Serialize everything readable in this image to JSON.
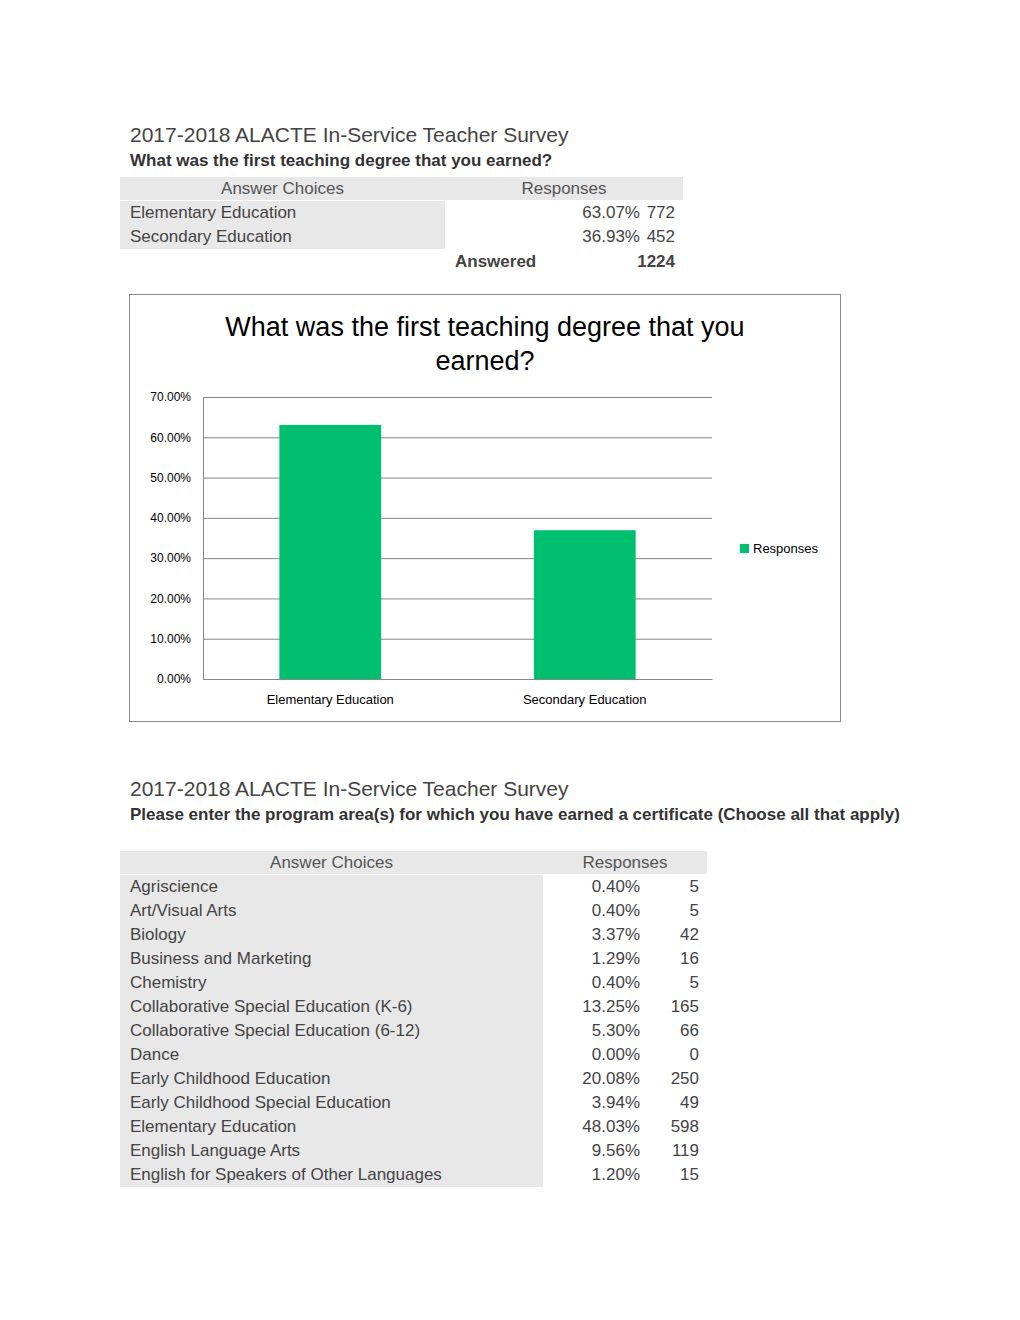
{
  "sections": [
    {
      "title": "2017-2018 ALACTE In-Service Teacher Survey",
      "question": "What was the first teaching degree that you earned?",
      "table": {
        "columns": [
          "Answer Choices",
          "Responses"
        ],
        "rows": [
          [
            "Elementary Education",
            "63.07%",
            772
          ],
          [
            "Secondary Education",
            "36.93%",
            452
          ]
        ],
        "total": {
          "label": "Answered",
          "value": 1224
        }
      }
    },
    {
      "title": "2017-2018 ALACTE In-Service Teacher Survey",
      "question": "Please enter the program area(s) for which you have earned a certificate (Choose all that apply)",
      "table": {
        "columns": [
          "Answer Choices",
          "Responses"
        ],
        "rows": [
          [
            "Agriscience",
            "0.40%",
            5
          ],
          [
            "Art/Visual Arts",
            "0.40%",
            5
          ],
          [
            "Biology",
            "3.37%",
            42
          ],
          [
            "Business and Marketing",
            "1.29%",
            16
          ],
          [
            "Chemistry",
            "0.40%",
            5
          ],
          [
            "Collaborative Special Education (K-6)",
            "13.25%",
            165
          ],
          [
            "Collaborative Special Education (6-12)",
            "5.30%",
            66
          ],
          [
            "Dance",
            "0.00%",
            0
          ],
          [
            "Early Childhood Education",
            "20.08%",
            250
          ],
          [
            "Early Childhood Special Education",
            "3.94%",
            49
          ],
          [
            "Elementary Education",
            "48.03%",
            598
          ],
          [
            "English Language Arts",
            "9.56%",
            119
          ],
          [
            "English for Speakers of Other Languages",
            "1.20%",
            15
          ]
        ]
      }
    }
  ],
  "chart_data": {
    "type": "bar",
    "title": "What was the first teaching degree that you earned?",
    "categories": [
      "Elementary Education",
      "Secondary Education"
    ],
    "series": [
      {
        "name": "Responses",
        "color": "#00bf6f",
        "values": [
          63.07,
          36.93
        ]
      }
    ],
    "ylim": [
      0,
      70
    ],
    "yticks": [
      {
        "value": 0,
        "label": "0.00%"
      },
      {
        "value": 10,
        "label": "10.00%"
      },
      {
        "value": 20,
        "label": "20.00%"
      },
      {
        "value": 30,
        "label": "30.00%"
      },
      {
        "value": 40,
        "label": "40.00%"
      },
      {
        "value": 50,
        "label": "50.00%"
      },
      {
        "value": 60,
        "label": "60.00%"
      },
      {
        "value": 70,
        "label": "70.00%"
      }
    ],
    "grid": true,
    "legend": "right"
  }
}
